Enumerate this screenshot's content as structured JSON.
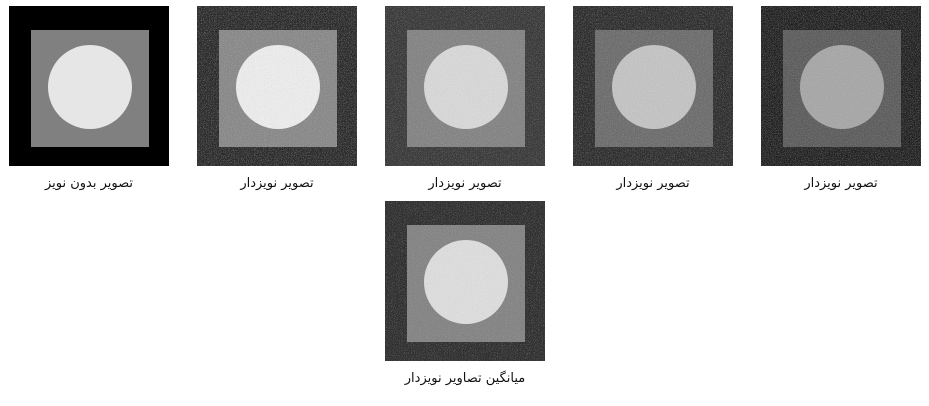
{
  "figure": {
    "panels": [
      {
        "caption": "تصویر بدون نویز",
        "noise": 0,
        "tone": "clean"
      },
      {
        "caption": "تصویر نویزدار",
        "noise": 1,
        "tone": "noisy"
      },
      {
        "caption": "تصویر نویزدار",
        "noise": 1,
        "tone": "noisy"
      },
      {
        "caption": "تصویر نویزدار",
        "noise": 1,
        "tone": "noisy"
      },
      {
        "caption": "تصویر نویزدار",
        "noise": 1,
        "tone": "noisy"
      },
      {
        "caption": "میانگین تصاویر نویزدار",
        "noise": 0.5,
        "tone": "average"
      }
    ]
  },
  "colors": {
    "clean_outer": "#000000",
    "clean_square": "#808080",
    "clean_circle": "#e6e6e6"
  }
}
